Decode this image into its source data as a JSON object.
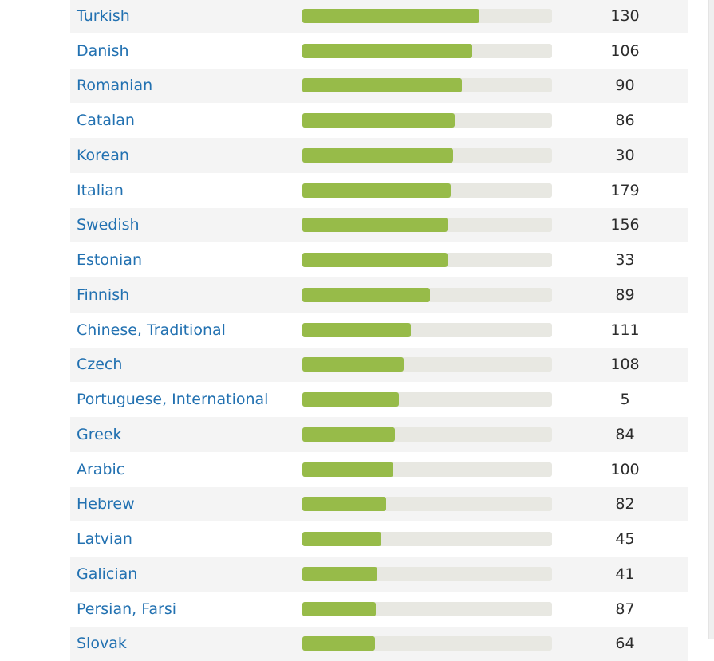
{
  "languages": [
    {
      "name": "Turkish",
      "progress": 0.71,
      "count": "130"
    },
    {
      "name": "Danish",
      "progress": 0.68,
      "count": "106"
    },
    {
      "name": "Romanian",
      "progress": 0.64,
      "count": "90"
    },
    {
      "name": "Catalan",
      "progress": 0.61,
      "count": "86"
    },
    {
      "name": "Korean",
      "progress": 0.605,
      "count": "30"
    },
    {
      "name": "Italian",
      "progress": 0.595,
      "count": "179"
    },
    {
      "name": "Swedish",
      "progress": 0.58,
      "count": "156"
    },
    {
      "name": "Estonian",
      "progress": 0.58,
      "count": "33"
    },
    {
      "name": "Finnish",
      "progress": 0.51,
      "count": "89"
    },
    {
      "name": "Chinese, Traditional",
      "progress": 0.435,
      "count": "111"
    },
    {
      "name": "Czech",
      "progress": 0.405,
      "count": "108"
    },
    {
      "name": "Portuguese, International",
      "progress": 0.385,
      "count": "5"
    },
    {
      "name": "Greek",
      "progress": 0.37,
      "count": "84"
    },
    {
      "name": "Arabic",
      "progress": 0.365,
      "count": "100"
    },
    {
      "name": "Hebrew",
      "progress": 0.335,
      "count": "82"
    },
    {
      "name": "Latvian",
      "progress": 0.315,
      "count": "45"
    },
    {
      "name": "Galician",
      "progress": 0.3,
      "count": "41"
    },
    {
      "name": "Persian, Farsi",
      "progress": 0.295,
      "count": "87"
    },
    {
      "name": "Slovak",
      "progress": 0.29,
      "count": "64"
    }
  ],
  "colors": {
    "link": "#2271b1",
    "bar_fill": "#97bb49",
    "bar_track": "#e8e8e2",
    "row_stripe": "#f4f4f4"
  }
}
